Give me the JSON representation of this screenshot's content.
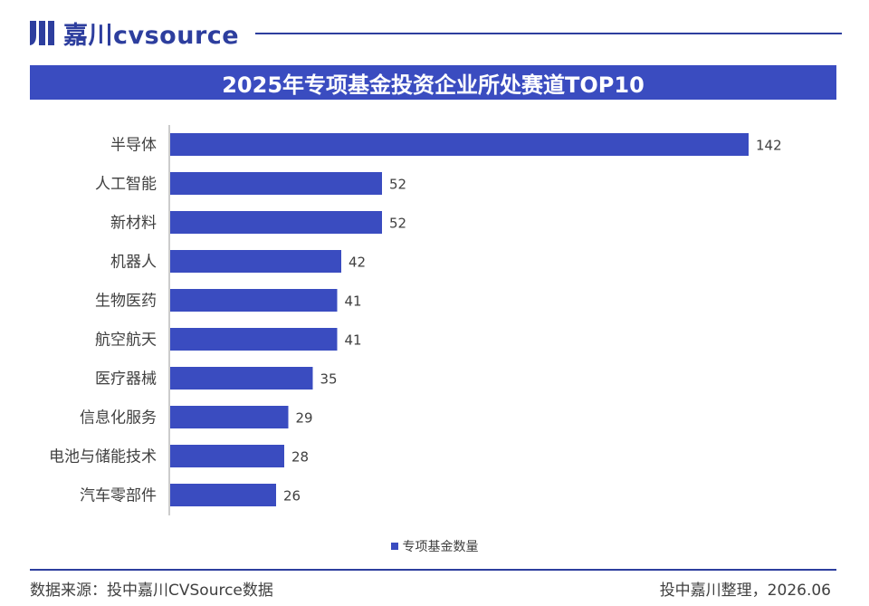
{
  "brand": {
    "name": "嘉川cvsource",
    "primary_color": "#2d3e9e"
  },
  "chart_data": {
    "type": "bar",
    "orientation": "horizontal",
    "title": "2025年专项基金投资企业所处赛道TOP10",
    "categories": [
      "半导体",
      "人工智能",
      "新材料",
      "机器人",
      "生物医药",
      "航空航天",
      "医疗器械",
      "信息化服务",
      "电池与储能技术",
      "汽车零部件"
    ],
    "series": [
      {
        "name": "专项基金数量",
        "values": [
          142,
          52,
          52,
          42,
          41,
          41,
          35,
          29,
          28,
          26
        ],
        "color": "#3a4cc0"
      }
    ],
    "xlim": [
      0,
      150
    ],
    "grid": false,
    "legend": "bottom-center",
    "data_labels": true
  },
  "footer": {
    "source": "数据来源：投中嘉川CVSource数据",
    "credit": "投中嘉川整理，2026.06"
  }
}
